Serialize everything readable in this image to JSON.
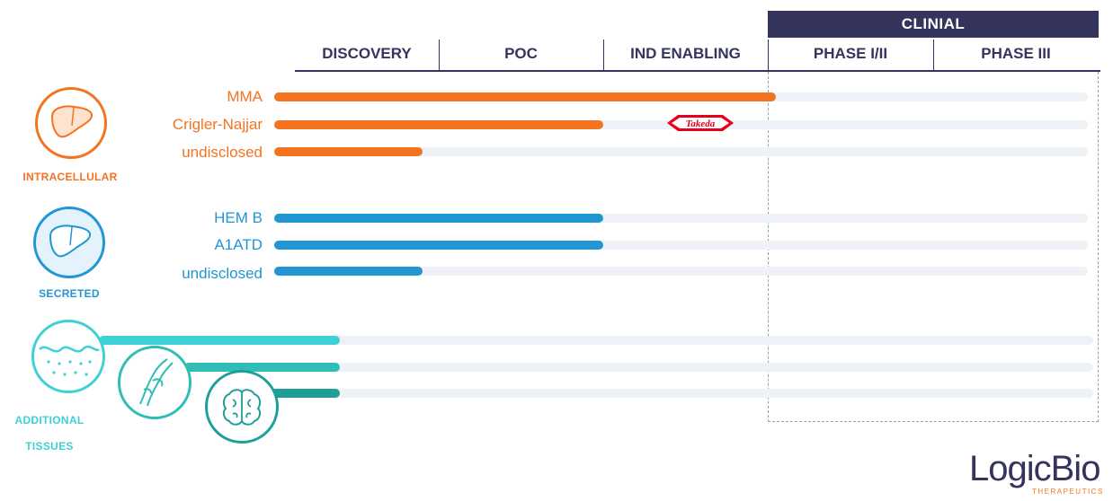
{
  "header": {
    "clinical_label": "CLINIAL",
    "phases": [
      "DISCOVERY",
      "POC",
      "IND ENABLING",
      "PHASE I/II",
      "PHASE III"
    ]
  },
  "categories": {
    "intracellular": "INTRACELLULAR",
    "secreted": "SECRETED",
    "additional_line1": "ADDITIONAL",
    "additional_line2": "TISSUES"
  },
  "partner_logo": "Takeda",
  "brand": {
    "name": "LogicBio",
    "sub": "THERAPEUTICS"
  },
  "colors": {
    "navy": "#34345c",
    "orange": "#f47321",
    "blue": "#2196d3",
    "cyan1": "#3dd1d6",
    "cyan2": "#2fbdb6",
    "teal": "#1f9f98",
    "track": "#eef1f5",
    "takeda_red": "#e6001a"
  },
  "chart_data": {
    "type": "bar",
    "orientation": "horizontal",
    "stages": [
      "DISCOVERY",
      "POC",
      "IND ENABLING",
      "PHASE I/II",
      "PHASE III"
    ],
    "x_unit": "development stage (0 = start of DISCOVERY, 5 = end of PHASE III)",
    "xlim": [
      0,
      5
    ],
    "series": [
      {
        "group": "INTRACELLULAR",
        "label": "MMA",
        "icon": "",
        "progress": 3.05,
        "color": "#f47321"
      },
      {
        "group": "INTRACELLULAR",
        "label": "Crigler-Najjar",
        "icon": "",
        "progress": 2.0,
        "color": "#f47321",
        "partner": "Takeda"
      },
      {
        "group": "INTRACELLULAR",
        "label": "undisclosed",
        "icon": "",
        "progress": 0.9,
        "color": "#f47321"
      },
      {
        "group": "SECRETED",
        "label": "HEM B",
        "icon": "",
        "progress": 2.0,
        "color": "#2196d3"
      },
      {
        "group": "SECRETED",
        "label": "A1ATD",
        "icon": "",
        "progress": 2.0,
        "color": "#2196d3"
      },
      {
        "group": "SECRETED",
        "label": "undisclosed",
        "icon": "",
        "progress": 0.9,
        "color": "#2196d3"
      },
      {
        "group": "ADDITIONAL TISSUES",
        "label": "",
        "icon": "skin-icon",
        "progress": 0.4,
        "color": "#3dd1d6"
      },
      {
        "group": "ADDITIONAL TISSUES",
        "label": "",
        "icon": "muscle-icon",
        "progress": 0.4,
        "color": "#2fbdb6"
      },
      {
        "group": "ADDITIONAL TISSUES",
        "label": "",
        "icon": "brain-icon",
        "progress": 0.4,
        "color": "#1f9f98"
      }
    ]
  }
}
